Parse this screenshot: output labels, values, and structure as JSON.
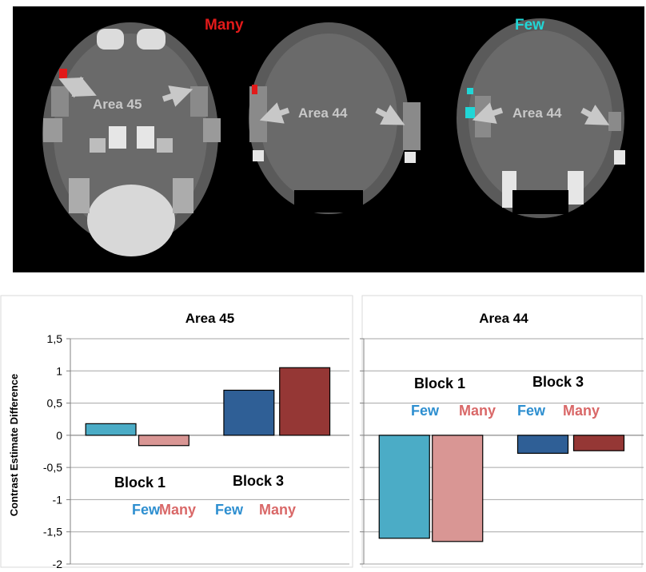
{
  "brain": {
    "label_many": "Many",
    "label_few": "Few",
    "area_labels": [
      "Area 45",
      "Area 44",
      "Area 44"
    ],
    "colors": {
      "many": "#e21a1a",
      "few": "#21d6d6",
      "label": "#c8c8c8"
    }
  },
  "chart_data": [
    {
      "type": "bar",
      "title": "Area 45",
      "ylabel": "Contrast Estimate Difference",
      "ylim": [
        -2,
        1.5
      ],
      "yticks": [
        -2,
        -1.5,
        -1,
        -0.5,
        0,
        0.5,
        1,
        1.5
      ],
      "ytick_labels": [
        "-2",
        "-1,5",
        "-1",
        "-0,5",
        "0",
        "0,5",
        "1",
        "1,5"
      ],
      "grid": true,
      "blocks": [
        {
          "name": "Block 1",
          "bars": [
            {
              "condition": "Few",
              "value": 0.18,
              "color": "#4bacc6"
            },
            {
              "condition": "Many",
              "value": -0.16,
              "color": "#d99694"
            }
          ]
        },
        {
          "name": "Block 3",
          "bars": [
            {
              "condition": "Few",
              "value": 0.7,
              "color": "#2f5f96"
            },
            {
              "condition": "Many",
              "value": 1.05,
              "color": "#953735"
            }
          ]
        }
      ],
      "labels": {
        "block1": "Block 1",
        "block3": "Block 3",
        "few": "Few",
        "many": "Many"
      }
    },
    {
      "type": "bar",
      "title": "Area 44",
      "ylim": [
        -2,
        1.5
      ],
      "grid": true,
      "blocks": [
        {
          "name": "Block 1",
          "bars": [
            {
              "condition": "Few",
              "value": -1.6,
              "color": "#4bacc6"
            },
            {
              "condition": "Many",
              "value": -1.65,
              "color": "#d99694"
            }
          ]
        },
        {
          "name": "Block 3",
          "bars": [
            {
              "condition": "Few",
              "value": -0.28,
              "color": "#2f5f96"
            },
            {
              "condition": "Many",
              "value": -0.24,
              "color": "#953735"
            }
          ]
        }
      ],
      "labels": {
        "block1": "Block 1",
        "block3": "Block 3",
        "few": "Few",
        "many": "Many"
      }
    }
  ],
  "label_colors": {
    "few": "#2e8fd0",
    "many": "#d96868"
  }
}
